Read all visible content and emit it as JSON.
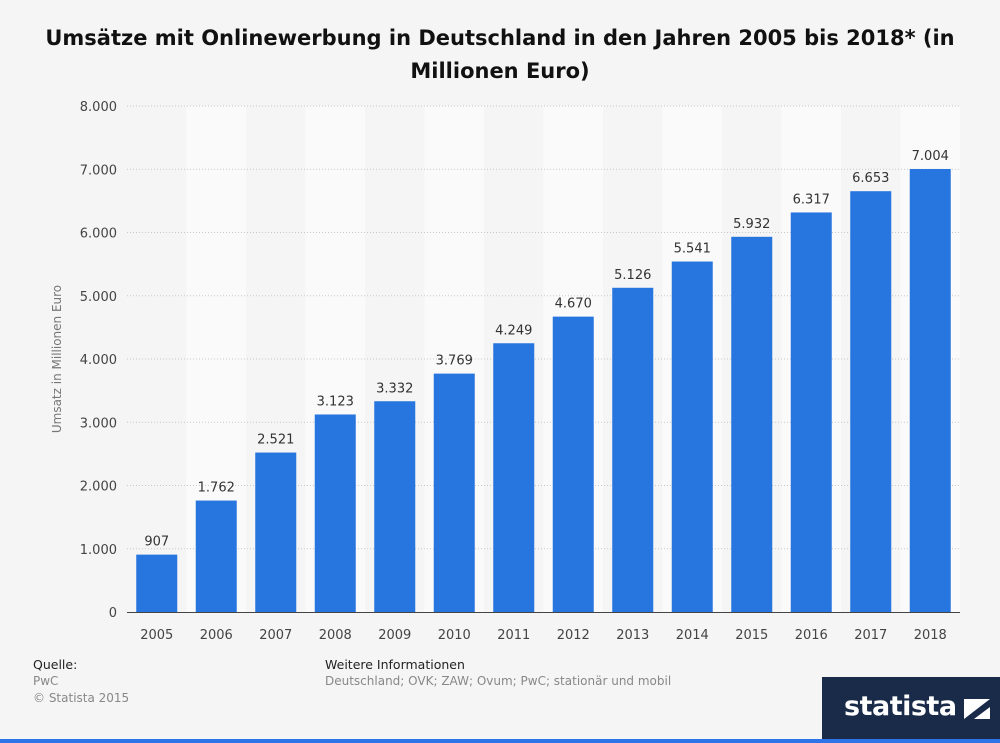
{
  "chart_data": {
    "type": "bar",
    "title": "Umsätze mit Onlinewerbung in Deutschland in den Jahren 2005 bis 2018* (in Millionen Euro)",
    "title_lines": [
      "Umsätze mit Onlinewerbung in Deutschland in den Jahren 2005 bis 2018* (in",
      "Millionen Euro)"
    ],
    "categories": [
      "2005",
      "2006",
      "2007",
      "2008",
      "2009",
      "2010",
      "2011",
      "2012",
      "2013",
      "2014",
      "2015",
      "2016",
      "2017",
      "2018"
    ],
    "values": [
      907,
      1762,
      2521,
      3123,
      3332,
      3769,
      4249,
      4670,
      5126,
      5541,
      5932,
      6317,
      6653,
      7004
    ],
    "value_labels": [
      "907",
      "1.762",
      "2.521",
      "3.123",
      "3.332",
      "3.769",
      "4.249",
      "4.670",
      "5.126",
      "5.541",
      "5.932",
      "6.317",
      "6.653",
      "7.004"
    ],
    "ylabel": "Umsatz in Millionen Euro",
    "xlabel": "",
    "ylim": [
      0,
      8000
    ],
    "yticks": [
      0,
      1000,
      2000,
      3000,
      4000,
      5000,
      6000,
      7000,
      8000
    ],
    "ytick_labels": [
      "0",
      "1.000",
      "2.000",
      "3.000",
      "4.000",
      "5.000",
      "6.000",
      "7.000",
      "8.000"
    ],
    "grid": true,
    "bar_color": "#2775de"
  },
  "footer": {
    "source_heading": "Quelle:",
    "source_lines": [
      "PwC",
      "© Statista 2015"
    ],
    "info_heading": "Weitere Informationen",
    "info_text": "Deutschland; OVK; ZAW; Ovum; PwC; stationär und mobil"
  },
  "logo": {
    "text": "statista",
    "color": "#1a2b4a"
  }
}
